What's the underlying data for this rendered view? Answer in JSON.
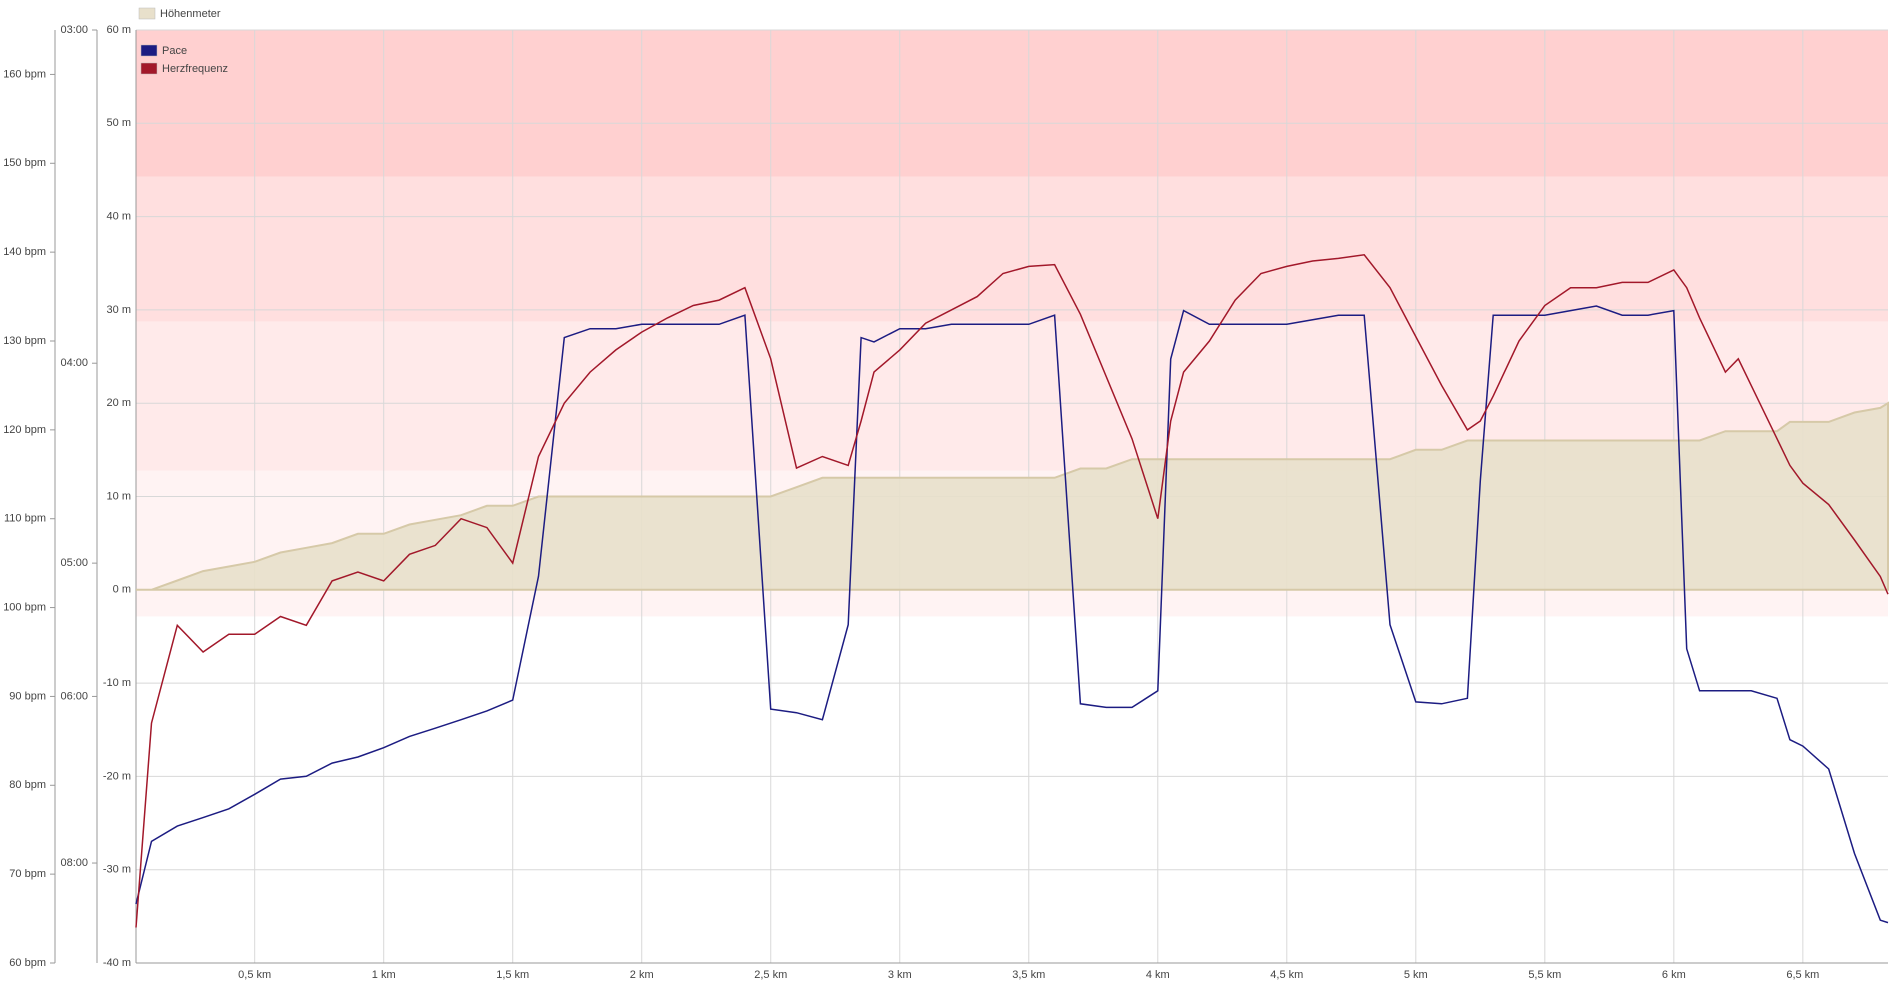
{
  "chart_data": {
    "type": "line",
    "legend": "top-left",
    "grid": true,
    "x": [
      0.04,
      0.1,
      0.2,
      0.3,
      0.4,
      0.5,
      0.6,
      0.7,
      0.8,
      0.9,
      1.0,
      1.1,
      1.2,
      1.3,
      1.4,
      1.5,
      1.6,
      1.7,
      1.8,
      1.9,
      2.0,
      2.1,
      2.2,
      2.3,
      2.4,
      2.5,
      2.6,
      2.7,
      2.8,
      2.85,
      2.9,
      3.0,
      3.1,
      3.2,
      3.3,
      3.4,
      3.5,
      3.6,
      3.7,
      3.8,
      3.9,
      4.0,
      4.05,
      4.1,
      4.2,
      4.3,
      4.4,
      4.5,
      4.6,
      4.7,
      4.8,
      4.9,
      5.0,
      5.1,
      5.2,
      5.25,
      5.3,
      5.4,
      5.5,
      5.6,
      5.7,
      5.8,
      5.9,
      6.0,
      6.05,
      6.1,
      6.2,
      6.25,
      6.3,
      6.4,
      6.45,
      6.5,
      6.6,
      6.7,
      6.8,
      6.83
    ],
    "xlim": [
      0.04,
      6.83
    ],
    "xticks": [
      {
        "value": 0.5,
        "label": "0,5 km"
      },
      {
        "value": 1,
        "label": "1 km"
      },
      {
        "value": 1.5,
        "label": "1,5 km"
      },
      {
        "value": 2,
        "label": "2 km"
      },
      {
        "value": 2.5,
        "label": "2,5 km"
      },
      {
        "value": 3,
        "label": "3 km"
      },
      {
        "value": 3.5,
        "label": "3,5 km"
      },
      {
        "value": 4,
        "label": "4 km"
      },
      {
        "value": 4.5,
        "label": "4,5 km"
      },
      {
        "value": 5,
        "label": "5 km"
      },
      {
        "value": 5.5,
        "label": "5,5 km"
      },
      {
        "value": 6,
        "label": "6 km"
      },
      {
        "value": 6.5,
        "label": "6,5 km"
      }
    ],
    "ylim": [
      -40,
      60
    ],
    "yticks": [
      {
        "value": -40,
        "label": "-40 m"
      },
      {
        "value": -30,
        "label": "-30 m"
      },
      {
        "value": -20,
        "label": "-20 m"
      },
      {
        "value": -10,
        "label": "-10 m"
      },
      {
        "value": 0,
        "label": "0 m"
      },
      {
        "value": 10,
        "label": "10 m"
      },
      {
        "value": 20,
        "label": "20 m"
      },
      {
        "value": 30,
        "label": "30 m"
      },
      {
        "value": 40,
        "label": "40 m"
      },
      {
        "value": 50,
        "label": "50 m"
      },
      {
        "value": 60,
        "label": "60 m"
      }
    ],
    "y2lim": [
      60,
      165
    ],
    "y2ticks": [
      {
        "value": 60,
        "label": "60 bpm"
      },
      {
        "value": 70,
        "label": "70 bpm"
      },
      {
        "value": 80,
        "label": "80 bpm"
      },
      {
        "value": 90,
        "label": "90 bpm"
      },
      {
        "value": 100,
        "label": "100 bpm"
      },
      {
        "value": 110,
        "label": "110 bpm"
      },
      {
        "value": 120,
        "label": "120 bpm"
      },
      {
        "value": 130,
        "label": "130 bpm"
      },
      {
        "value": 140,
        "label": "140 bpm"
      },
      {
        "value": 150,
        "label": "150 bpm"
      },
      {
        "value": 160,
        "label": "160 bpm"
      }
    ],
    "y3lim": [
      180,
      600
    ],
    "y3scale": "reciprocal",
    "y3ticks": [
      {
        "value": 180,
        "label": "03:00"
      },
      {
        "value": 240,
        "label": "04:00"
      },
      {
        "value": 300,
        "label": "05:00"
      },
      {
        "value": 360,
        "label": "06:00"
      },
      {
        "value": 480,
        "label": "08:00"
      }
    ],
    "hr_zones": [
      {
        "from": 99,
        "to": 115.4,
        "color": "#fff3f3"
      },
      {
        "from": 115.4,
        "to": 132.2,
        "color": "#ffeaea"
      },
      {
        "from": 132.2,
        "to": 148.5,
        "color": "#ffdfdf"
      },
      {
        "from": 148.5,
        "to": 165,
        "color": "#ffd0d0"
      }
    ],
    "series": [
      {
        "name": "Höhenmeter",
        "color": "#e8e0cb",
        "area": true,
        "axis": "y",
        "values": [
          0,
          0,
          1,
          2,
          2.5,
          3,
          4,
          4.5,
          5,
          6,
          6,
          7,
          7.5,
          8,
          9,
          9,
          10,
          10,
          10,
          10,
          10,
          10,
          10,
          10,
          10,
          10,
          11,
          12,
          12,
          12,
          12,
          12,
          12,
          12,
          12,
          12,
          12,
          12,
          13,
          13,
          14,
          14,
          14,
          14,
          14,
          14,
          14,
          14,
          14,
          14,
          14,
          14,
          15,
          15,
          16,
          16,
          16,
          16,
          16,
          16,
          16,
          16,
          16,
          16,
          16,
          16,
          17,
          17,
          17,
          17,
          18,
          18,
          18,
          19,
          19.5,
          20
        ]
      },
      {
        "name": "Pace",
        "color": "#1c1c82",
        "axis": "y3",
        "values": [
          523,
          460,
          447,
          440,
          433,
          422,
          411,
          409,
          400,
          396,
          390,
          383,
          378,
          373,
          368,
          362,
          305,
          234,
          232,
          232,
          231,
          231,
          231,
          231,
          229,
          367,
          369,
          373,
          325,
          234,
          235,
          232,
          232,
          231,
          231,
          231,
          231,
          229,
          364,
          366,
          366,
          357,
          239,
          228,
          231,
          231,
          231,
          231,
          230,
          229,
          229,
          325,
          363,
          364,
          361,
          272,
          229,
          229,
          229,
          228,
          227,
          229,
          229,
          228,
          336,
          357,
          357,
          357,
          357,
          361,
          385,
          389,
          404,
          471,
          542,
          545
        ]
      },
      {
        "name": "Herzfrequenz",
        "color": "#a2182a",
        "axis": "y2",
        "values": [
          64,
          87,
          98,
          95,
          97,
          97,
          99,
          98,
          103,
          104,
          103,
          106,
          107,
          110,
          109,
          105,
          117,
          123,
          126.5,
          129,
          131,
          132.6,
          134,
          134.6,
          136,
          128,
          115.7,
          117,
          116,
          121,
          126.5,
          129,
          132,
          133.5,
          135,
          137.6,
          138.4,
          138.6,
          133,
          126,
          119,
          110,
          121,
          126.5,
          130,
          134.6,
          137.6,
          138.4,
          139,
          139.3,
          139.7,
          136,
          130.5,
          125,
          120,
          121,
          123.8,
          130,
          134,
          136,
          136,
          136.6,
          136.6,
          138,
          136,
          132.6,
          126.5,
          128,
          125,
          119,
          116,
          114,
          111.6,
          107.6,
          103.5,
          101.5
        ]
      }
    ]
  }
}
